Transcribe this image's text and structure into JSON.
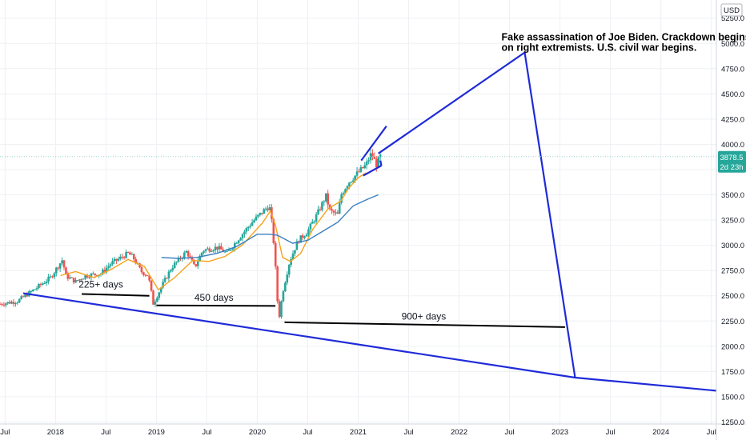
{
  "chart_data": {
    "type": "candlestick",
    "currency_label": "USD",
    "last_price_label": "3878.5",
    "countdown_label": "2d 23h",
    "x_tick_labels": [
      "Jul",
      "2018",
      "Jul",
      "2019",
      "Jul",
      "2020",
      "Jul",
      "2021",
      "Jul",
      "2022",
      "Jul",
      "2023",
      "Jul",
      "2024",
      "Jul"
    ],
    "y_tick_values": [
      1250,
      1500,
      1750,
      2000,
      2250,
      2500,
      2750,
      3000,
      3250,
      3500,
      3750,
      4000,
      4250,
      4500,
      4750,
      5000,
      5250
    ],
    "y_tick_labels": [
      "1250.0",
      "1500.0",
      "1750.0",
      "2000.0",
      "2250.0",
      "2500.0",
      "2750.0",
      "3000.0",
      "3250.0",
      "3500.0",
      "3750.0",
      "4000.0",
      "4250.0",
      "4500.0",
      "4750.0",
      "5000.0",
      "5250.0"
    ],
    "ylim": [
      1230,
      5430
    ],
    "xlim": [
      2017.45,
      2024.55
    ],
    "weekly_close_anchors": [
      [
        2017.45,
        2420
      ],
      [
        2017.62,
        2445
      ],
      [
        2017.8,
        2570
      ],
      [
        2017.95,
        2680
      ],
      [
        2018.07,
        2860
      ],
      [
        2018.1,
        2700
      ],
      [
        2018.2,
        2640
      ],
      [
        2018.3,
        2700
      ],
      [
        2018.45,
        2720
      ],
      [
        2018.55,
        2820
      ],
      [
        2018.72,
        2920
      ],
      [
        2018.77,
        2880
      ],
      [
        2018.85,
        2740
      ],
      [
        2018.92,
        2700
      ],
      [
        2018.97,
        2420
      ],
      [
        2019.05,
        2590
      ],
      [
        2019.15,
        2780
      ],
      [
        2019.3,
        2940
      ],
      [
        2019.38,
        2780
      ],
      [
        2019.46,
        2950
      ],
      [
        2019.6,
        2980
      ],
      [
        2019.7,
        2920
      ],
      [
        2019.8,
        3050
      ],
      [
        2019.95,
        3230
      ],
      [
        2020.1,
        3380
      ],
      [
        2020.13,
        3360
      ],
      [
        2020.17,
        2950
      ],
      [
        2020.2,
        2450
      ],
      [
        2020.22,
        2300
      ],
      [
        2020.25,
        2530
      ],
      [
        2020.32,
        2840
      ],
      [
        2020.4,
        3040
      ],
      [
        2020.5,
        3140
      ],
      [
        2020.6,
        3320
      ],
      [
        2020.68,
        3490
      ],
      [
        2020.72,
        3340
      ],
      [
        2020.8,
        3300
      ],
      [
        2020.83,
        3500
      ],
      [
        2020.9,
        3620
      ],
      [
        2021.0,
        3720
      ],
      [
        2021.08,
        3800
      ],
      [
        2021.13,
        3910
      ],
      [
        2021.18,
        3800
      ],
      [
        2021.22,
        3880
      ]
    ],
    "moving_averages": [
      {
        "name": "",
        "color": "#f7a21b",
        "points": [
          [
            2018.05,
            2700
          ],
          [
            2018.2,
            2740
          ],
          [
            2018.38,
            2680
          ],
          [
            2018.55,
            2760
          ],
          [
            2018.72,
            2860
          ],
          [
            2018.88,
            2790
          ],
          [
            2019.02,
            2560
          ],
          [
            2019.18,
            2680
          ],
          [
            2019.36,
            2850
          ],
          [
            2019.52,
            2840
          ],
          [
            2019.68,
            2890
          ],
          [
            2019.85,
            3000
          ],
          [
            2020.05,
            3220
          ],
          [
            2020.13,
            3340
          ],
          [
            2020.18,
            3200
          ],
          [
            2020.25,
            2880
          ],
          [
            2020.33,
            2840
          ],
          [
            2020.43,
            2920
          ],
          [
            2020.55,
            3160
          ],
          [
            2020.7,
            3360
          ],
          [
            2020.83,
            3440
          ],
          [
            2020.9,
            3560
          ],
          [
            2021.0,
            3670
          ],
          [
            2021.08,
            3720
          ]
        ]
      },
      {
        "name": "",
        "color": "#3a7fc1",
        "points": [
          [
            2019.05,
            2880
          ],
          [
            2019.22,
            2870
          ],
          [
            2019.4,
            2880
          ],
          [
            2019.6,
            2920
          ],
          [
            2019.8,
            2990
          ],
          [
            2020.0,
            3110
          ],
          [
            2020.12,
            3110
          ],
          [
            2020.2,
            3100
          ],
          [
            2020.35,
            3020
          ],
          [
            2020.5,
            3050
          ],
          [
            2020.65,
            3140
          ],
          [
            2020.8,
            3230
          ],
          [
            2020.95,
            3390
          ],
          [
            2021.1,
            3460
          ],
          [
            2021.2,
            3500
          ]
        ]
      }
    ],
    "annotations": {
      "labels": [
        {
          "text": "225+ days",
          "x": 2018.45,
          "y": 2580
        },
        {
          "text": "450 days",
          "x": 2019.57,
          "y": 2450
        },
        {
          "text": "900+ days",
          "x": 2021.65,
          "y": 2265
        }
      ],
      "horizontal_segments": [
        [
          [
            2018.26,
            2518
          ],
          [
            2018.93,
            2500
          ]
        ],
        [
          [
            2019.0,
            2405
          ],
          [
            2020.18,
            2400
          ]
        ],
        [
          [
            2020.27,
            2237
          ],
          [
            2023.05,
            2190
          ]
        ]
      ],
      "projection_lines": [
        [
          [
            2017.68,
            2525
          ],
          [
            2023.15,
            1690
          ],
          [
            2024.55,
            1560
          ]
        ],
        [
          [
            2021.2,
            3910
          ],
          [
            2022.65,
            4910
          ],
          [
            2023.15,
            1690
          ]
        ],
        [
          [
            2021.03,
            3840
          ],
          [
            2021.28,
            4180
          ]
        ],
        [
          [
            2021.05,
            3690
          ],
          [
            2021.23,
            3790
          ]
        ],
        [
          [
            2021.23,
            3790
          ],
          [
            2021.22,
            3840
          ]
        ]
      ],
      "note_lines": [
        "Fake assassination of Joe Biden. Crackdown begins",
        "on right extremists. U.S. civil war begins."
      ],
      "note_position": {
        "x": 2022.42,
        "y": 5030
      }
    },
    "colors": {
      "up": "#26a69a",
      "down": "#ef5350",
      "drawing": "#1f2bd8",
      "segment": "#000000",
      "last_price_badge": "#26a69a",
      "last_price_line": "#9fd6cf"
    }
  }
}
